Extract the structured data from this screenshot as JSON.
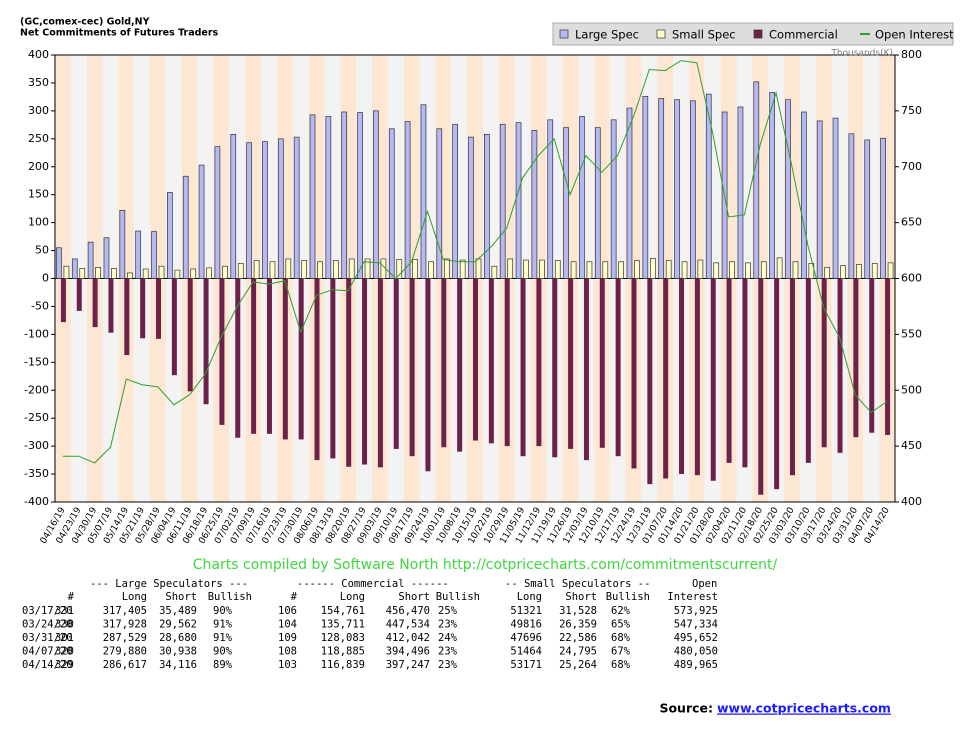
{
  "chart_data": {
    "type": "bar",
    "title": "(GC,comex-cec) Gold,NY",
    "subtitle": "Net Commitments of Futures Traders",
    "y2_label": "Thousands(K)",
    "categories": [
      "04/16/19",
      "04/23/19",
      "04/30/19",
      "05/07/19",
      "05/14/19",
      "05/21/19",
      "05/28/19",
      "06/04/19",
      "06/11/19",
      "06/18/19",
      "06/25/19",
      "07/02/19",
      "07/09/19",
      "07/16/19",
      "07/23/19",
      "07/30/19",
      "08/06/19",
      "08/13/19",
      "08/20/19",
      "08/27/19",
      "09/03/19",
      "09/10/19",
      "09/17/19",
      "09/24/19",
      "10/01/19",
      "10/08/19",
      "10/15/19",
      "10/22/19",
      "10/29/19",
      "11/05/19",
      "11/12/19",
      "11/19/19",
      "11/26/19",
      "12/03/19",
      "12/10/19",
      "12/17/19",
      "12/24/19",
      "12/31/19",
      "01/07/20",
      "01/14/20",
      "01/21/20",
      "01/28/20",
      "02/04/20",
      "02/11/20",
      "02/18/20",
      "02/25/20",
      "03/03/20",
      "03/10/20",
      "03/17/20",
      "03/24/20",
      "03/31/20",
      "04/07/20",
      "04/14/20"
    ],
    "series": [
      {
        "name": "Large Spec",
        "color": "#b4b8f4",
        "values": [
          55,
          35,
          65,
          73,
          122,
          85,
          84,
          154,
          183,
          203,
          236,
          258,
          243,
          245,
          250,
          253,
          293,
          290,
          298,
          297,
          300,
          268,
          281,
          311,
          268,
          276,
          253,
          258,
          276,
          279,
          265,
          284,
          270,
          290,
          270,
          284,
          305,
          326,
          322,
          320,
          318,
          330,
          298,
          307,
          352,
          333,
          320,
          298,
          282,
          287,
          259,
          248,
          251
        ]
      },
      {
        "name": "Small Spec",
        "color": "#ffffcc",
        "values": [
          22,
          18,
          20,
          18,
          10,
          17,
          22,
          15,
          17,
          19,
          22,
          27,
          32,
          30,
          35,
          32,
          30,
          32,
          35,
          35,
          35,
          34,
          34,
          30,
          35,
          33,
          35,
          22,
          35,
          33,
          33,
          32,
          30,
          30,
          30,
          30,
          32,
          36,
          32,
          30,
          33,
          28,
          30,
          28,
          30,
          37,
          30,
          27,
          20,
          23,
          25,
          27,
          28
        ]
      },
      {
        "name": "Commercial",
        "color": "#6e2148",
        "values": [
          -78,
          -58,
          -87,
          -97,
          -137,
          -107,
          -108,
          -173,
          -202,
          -225,
          -262,
          -285,
          -278,
          -278,
          -288,
          -288,
          -325,
          -322,
          -337,
          -333,
          -338,
          -305,
          -318,
          -345,
          -302,
          -310,
          -290,
          -295,
          -300,
          -318,
          -300,
          -320,
          -305,
          -325,
          -303,
          -318,
          -340,
          -368,
          -358,
          -350,
          -352,
          -362,
          -330,
          -338,
          -387,
          -377,
          -352,
          -330,
          -302,
          -312,
          -284,
          -276,
          -280
        ]
      },
      {
        "name": "Open Interest",
        "color": "#2f9e2f",
        "type": "line",
        "axis": "y2",
        "values": [
          441,
          441,
          435,
          449,
          510,
          505,
          503,
          487,
          496,
          515,
          548,
          575,
          597,
          595,
          598,
          552,
          585,
          590,
          589,
          615,
          614,
          600,
          615,
          660,
          617,
          615,
          615,
          628,
          645,
          690,
          710,
          725,
          675,
          710,
          695,
          710,
          745,
          787,
          786,
          795,
          793,
          730,
          655,
          657,
          720,
          766,
          700,
          630,
          573.9,
          547.3,
          495.7,
          480.1,
          490.0
        ]
      }
    ],
    "ylim": [
      -400,
      400
    ],
    "yticks": [
      -400,
      -350,
      -300,
      -250,
      -200,
      -150,
      -100,
      -50,
      0,
      50,
      100,
      150,
      200,
      250,
      300,
      350,
      400
    ],
    "y2lim": [
      400,
      800
    ],
    "y2ticks": [
      400,
      450,
      500,
      550,
      600,
      650,
      700,
      750,
      800
    ],
    "legend": "top-right"
  },
  "credit": "Charts compiled by Software North  http://cotpricecharts.com/commitmentscurrent/",
  "table": {
    "groups": [
      "--- Large Speculators ---",
      "------ Commercial ------",
      "-- Small Speculators --",
      "Open"
    ],
    "columns": [
      "#",
      "Long",
      "Short",
      "Bullish",
      "#",
      "Long",
      "Short",
      "Bullish",
      "Long",
      "Short",
      "Bullish",
      "Interest"
    ],
    "rows": [
      [
        "03/17/20",
        "331",
        "317,405",
        "35,489",
        "90%",
        "106",
        "154,761",
        "456,470",
        "25%",
        "51321",
        "31,528",
        "62%",
        "573,925"
      ],
      [
        "03/24/20",
        "330",
        "317,928",
        "29,562",
        "91%",
        "104",
        "135,711",
        "447,534",
        "23%",
        "49816",
        "26,359",
        "65%",
        "547,334"
      ],
      [
        "03/31/20",
        "301",
        "287,529",
        "28,680",
        "91%",
        "109",
        "128,083",
        "412,042",
        "24%",
        "47696",
        "22,586",
        "68%",
        "495,652"
      ],
      [
        "04/07/20",
        "320",
        "279,880",
        "30,938",
        "90%",
        "108",
        "118,885",
        "394,496",
        "23%",
        "51464",
        "24,795",
        "67%",
        "480,050"
      ],
      [
        "04/14/20",
        "329",
        "286,617",
        "34,116",
        "89%",
        "103",
        "116,839",
        "397,247",
        "23%",
        "53171",
        "25,264",
        "68%",
        "489,965"
      ]
    ]
  },
  "source": {
    "label": "Source:",
    "link": "www.cotpricecharts.com"
  }
}
